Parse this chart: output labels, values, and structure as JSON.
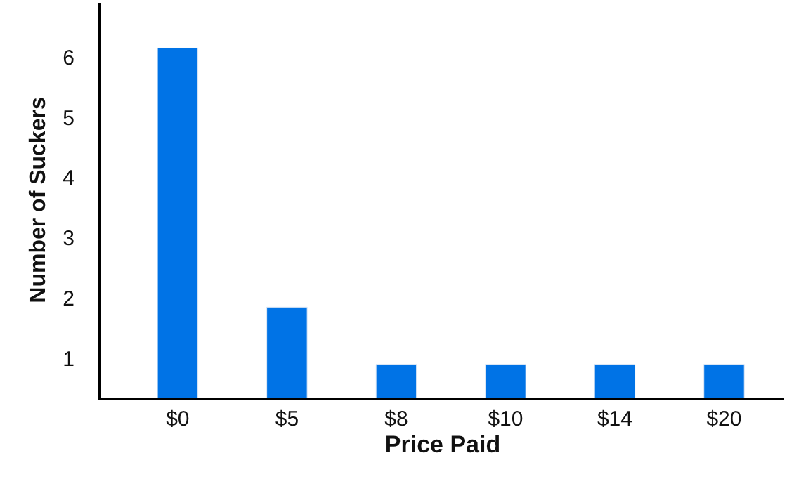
{
  "chart_data": {
    "type": "bar",
    "xlabel": "Price Paid",
    "ylabel": "Number of Suckers",
    "categories": [
      "$0",
      "$5",
      "$8",
      "$10",
      "$14",
      "$20"
    ],
    "values": [
      6.15,
      1.85,
      0.9,
      0.9,
      0.9,
      0.9
    ],
    "color": "#0073e6",
    "ylim": [
      0.35,
      6.9
    ],
    "yticks": [
      1,
      2,
      3,
      4,
      5,
      6
    ]
  }
}
